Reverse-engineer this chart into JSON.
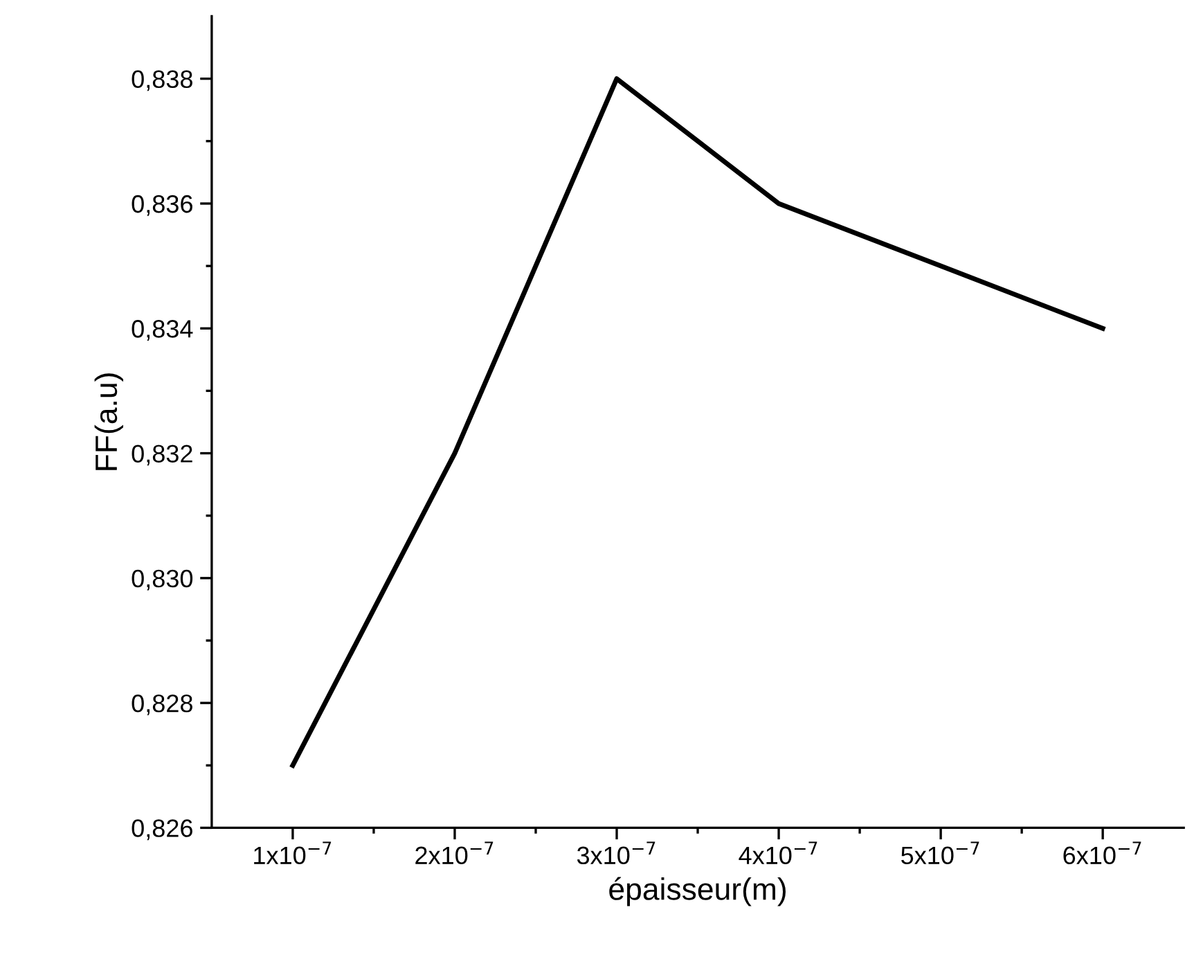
{
  "chart_data": {
    "type": "line",
    "xlabel": "épaisseur(m)",
    "ylabel": "FF(a.u)",
    "x": [
      1e-07,
      2e-07,
      3e-07,
      4e-07,
      5e-07,
      6e-07
    ],
    "series": [
      {
        "color": "#000000",
        "values": [
          0.827,
          0.832,
          0.838,
          0.836,
          0.835,
          0.834
        ]
      }
    ],
    "xlim": [
      5e-08,
      6.5e-07
    ],
    "ylim": [
      0.826,
      0.839
    ],
    "xticks": [
      {
        "value": 1e-07,
        "label": "1x10$^{−7}$"
      },
      {
        "value": 1.5e-07,
        "label": null
      },
      {
        "value": 2e-07,
        "label": "2x10$^{−7}$"
      },
      {
        "value": 2.5e-07,
        "label": null
      },
      {
        "value": 3e-07,
        "label": "3x10$^{−7}$"
      },
      {
        "value": 3.5e-07,
        "label": null
      },
      {
        "value": 4e-07,
        "label": "4x10$^{−7}$"
      },
      {
        "value": 4.5e-07,
        "label": null
      },
      {
        "value": 5e-07,
        "label": "5x10$^{−7}$"
      },
      {
        "value": 5.5e-07,
        "label": null
      },
      {
        "value": 6e-07,
        "label": "6x10$^{−7}$"
      }
    ],
    "yticks": [
      {
        "value": 0.826,
        "label": "0,826"
      },
      {
        "value": 0.827,
        "label": null
      },
      {
        "value": 0.828,
        "label": "0,828"
      },
      {
        "value": 0.829,
        "label": null
      },
      {
        "value": 0.83,
        "label": "0,830"
      },
      {
        "value": 0.831,
        "label": null
      },
      {
        "value": 0.832,
        "label": "0,832"
      },
      {
        "value": 0.833,
        "label": null
      },
      {
        "value": 0.834,
        "label": "0,834"
      },
      {
        "value": 0.835,
        "label": null
      },
      {
        "value": 0.836,
        "label": "0,836"
      },
      {
        "value": 0.837,
        "label": null
      },
      {
        "value": 0.838,
        "label": "0,838"
      }
    ],
    "grid": false,
    "legend": false,
    "marker": "none",
    "line_style": "solid"
  }
}
